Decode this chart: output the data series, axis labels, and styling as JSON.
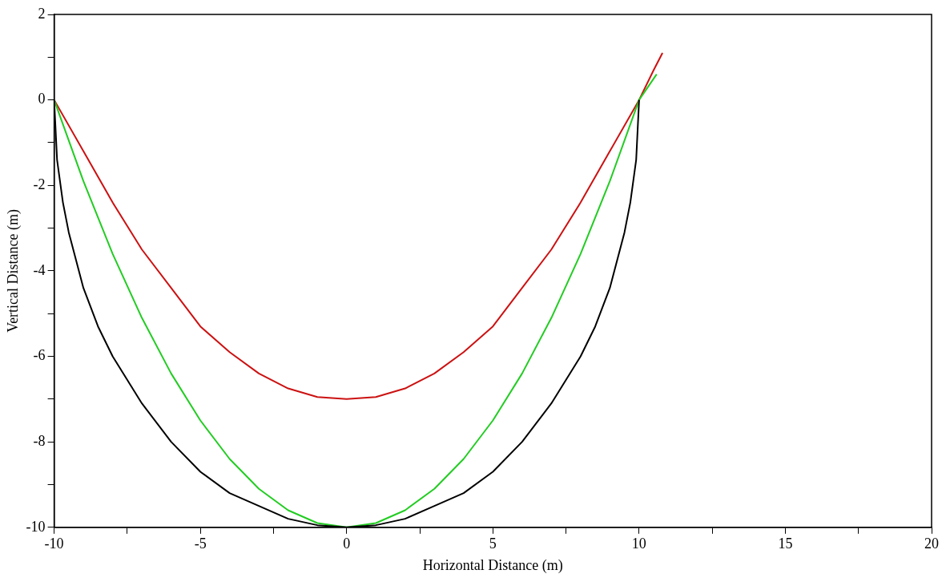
{
  "chart_data": {
    "type": "line",
    "xlabel": "Horizontal Distance (m)",
    "ylabel": "Vertical Distance (m)",
    "xlim": [
      -10,
      20
    ],
    "ylim": [
      -10,
      2
    ],
    "xticks": [
      -10,
      {
        "value": -7.5,
        "label": null
      },
      -5,
      {
        "value": -2.5,
        "label": null
      },
      0,
      {
        "value": 2.5,
        "label": null
      },
      5,
      {
        "value": 7.5,
        "label": null
      },
      10,
      {
        "value": 12.5,
        "label": null
      },
      15,
      {
        "value": 17.5,
        "label": null
      },
      20
    ],
    "yticks": [
      -10,
      {
        "value": -9,
        "label": null
      },
      -8,
      {
        "value": -7,
        "label": null
      },
      -6,
      {
        "value": -5,
        "label": null
      },
      -4,
      {
        "value": -3,
        "label": null
      },
      -2,
      {
        "value": -1,
        "label": null
      },
      0,
      {
        "value": 1,
        "label": null
      },
      2
    ],
    "grid": false,
    "legend": false,
    "marker": "none",
    "line_style": "solid",
    "series": [
      {
        "color": "#000000",
        "x": [
          -10,
          -9.9,
          -9.7,
          -9.5,
          -9,
          -8.5,
          -8,
          -7,
          -6,
          -5,
          -4,
          -3,
          -2,
          -1,
          0,
          1,
          2,
          3,
          4,
          5,
          6,
          7,
          8,
          8.5,
          9,
          9.5,
          9.7,
          9.9,
          10
        ],
        "values": [
          0,
          -1.4,
          -2.4,
          -3.1,
          -4.4,
          -5.3,
          -6,
          -7.1,
          -8,
          -8.7,
          -9.2,
          -9.5,
          -9.8,
          -9.95,
          -10,
          -9.95,
          -9.8,
          -9.5,
          -9.2,
          -8.7,
          -8,
          -7.1,
          -6,
          -5.3,
          -4.4,
          -3.1,
          -2.4,
          -1.4,
          0
        ]
      },
      {
        "color": "#22cc22",
        "x": [
          -10,
          -9,
          -8,
          -7,
          -6,
          -5,
          -4,
          -3,
          -2,
          -1,
          0,
          1,
          2,
          3,
          4,
          5,
          6,
          7,
          8,
          9,
          10,
          10.6
        ],
        "values": [
          0,
          -1.9,
          -3.6,
          -5.1,
          -6.4,
          -7.5,
          -8.4,
          -9.1,
          -9.6,
          -9.9,
          -10,
          -9.9,
          -9.6,
          -9.1,
          -8.4,
          -7.5,
          -6.4,
          -5.1,
          -3.6,
          -1.9,
          0,
          0.6
        ]
      },
      {
        "color": "#cc1111",
        "x": [
          -10,
          -9,
          -8,
          -7,
          -6,
          -5,
          -4,
          -3,
          -2,
          -1,
          0,
          1,
          2,
          3,
          4,
          5,
          6,
          7,
          8,
          9,
          10,
          10.5,
          10.8
        ],
        "values": [
          0,
          -1.2,
          -2.4,
          -3.5,
          -4.4,
          -5.3,
          -5.9,
          -6.4,
          -6.75,
          -6.95,
          -7,
          -6.95,
          -6.75,
          -6.4,
          -5.9,
          -5.3,
          -4.4,
          -3.5,
          -2.4,
          -1.2,
          0,
          0.7,
          1.1
        ]
      }
    ]
  }
}
